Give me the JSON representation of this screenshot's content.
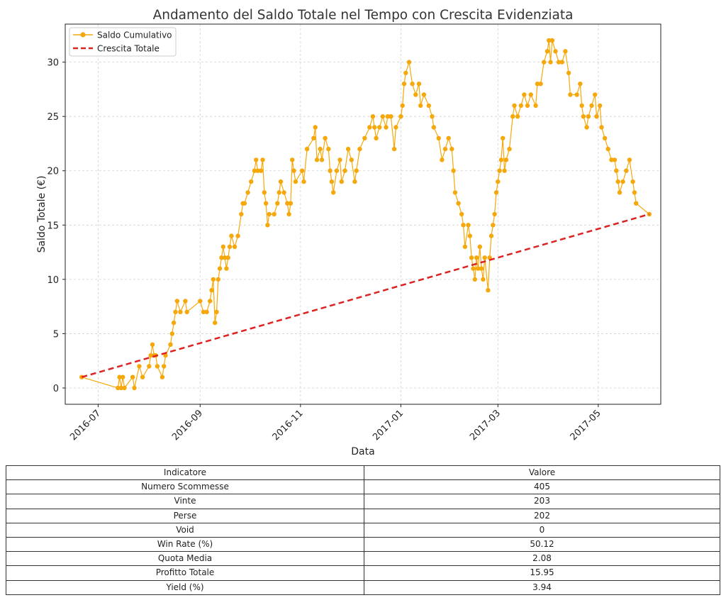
{
  "chart_data": {
    "type": "line",
    "title": "Andamento del Saldo Totale nel Tempo con Crescita Evidenziata",
    "xlabel": "Data",
    "ylabel": "Saldo Totale (€)",
    "xlim": [
      "2016-06-11",
      "2017-06-08"
    ],
    "ylim": [
      -1.5,
      33.5
    ],
    "x_ticks": [
      "2016-07-01",
      "2016-09-01",
      "2016-11-01",
      "2017-01-01",
      "2017-03-01",
      "2017-05-01"
    ],
    "x_tick_labels": [
      "2016-07",
      "2016-09",
      "2016-11",
      "2017-01",
      "2017-03",
      "2017-05"
    ],
    "y_ticks": [
      0,
      5,
      10,
      15,
      20,
      25,
      30
    ],
    "grid": true,
    "legend_position": "top-left",
    "series": [
      {
        "name": "Saldo Cumulativo",
        "color": "#f5a80b",
        "marker": "circle",
        "points": [
          [
            "2016-06-21",
            1
          ],
          [
            "2016-07-13",
            0
          ],
          [
            "2016-07-14",
            1
          ],
          [
            "2016-07-15",
            0
          ],
          [
            "2016-07-16",
            1
          ],
          [
            "2016-07-17",
            0
          ],
          [
            "2016-07-22",
            1
          ],
          [
            "2016-07-23",
            0
          ],
          [
            "2016-07-26",
            2
          ],
          [
            "2016-07-28",
            1
          ],
          [
            "2016-08-01",
            2
          ],
          [
            "2016-08-02",
            3
          ],
          [
            "2016-08-03",
            4
          ],
          [
            "2016-08-04",
            3
          ],
          [
            "2016-08-05",
            3
          ],
          [
            "2016-08-06",
            2
          ],
          [
            "2016-08-09",
            1
          ],
          [
            "2016-08-10",
            2
          ],
          [
            "2016-08-11",
            3
          ],
          [
            "2016-08-14",
            4
          ],
          [
            "2016-08-15",
            5
          ],
          [
            "2016-08-16",
            6
          ],
          [
            "2016-08-17",
            7
          ],
          [
            "2016-08-18",
            8
          ],
          [
            "2016-08-20",
            7
          ],
          [
            "2016-08-23",
            8
          ],
          [
            "2016-08-24",
            7
          ],
          [
            "2016-09-01",
            8
          ],
          [
            "2016-09-03",
            7
          ],
          [
            "2016-09-05",
            7
          ],
          [
            "2016-09-07",
            8
          ],
          [
            "2016-09-08",
            9
          ],
          [
            "2016-09-09",
            10
          ],
          [
            "2016-09-10",
            6
          ],
          [
            "2016-09-11",
            7
          ],
          [
            "2016-09-12",
            10
          ],
          [
            "2016-09-13",
            11
          ],
          [
            "2016-09-14",
            12
          ],
          [
            "2016-09-15",
            13
          ],
          [
            "2016-09-16",
            12
          ],
          [
            "2016-09-17",
            11
          ],
          [
            "2016-09-18",
            12
          ],
          [
            "2016-09-19",
            13
          ],
          [
            "2016-09-20",
            14
          ],
          [
            "2016-09-22",
            13
          ],
          [
            "2016-09-24",
            14
          ],
          [
            "2016-09-26",
            16
          ],
          [
            "2016-09-27",
            17
          ],
          [
            "2016-09-28",
            17
          ],
          [
            "2016-09-30",
            18
          ],
          [
            "2016-10-02",
            19
          ],
          [
            "2016-10-04",
            20
          ],
          [
            "2016-10-05",
            21
          ],
          [
            "2016-10-06",
            20
          ],
          [
            "2016-10-08",
            20
          ],
          [
            "2016-10-09",
            21
          ],
          [
            "2016-10-10",
            18
          ],
          [
            "2016-10-11",
            17
          ],
          [
            "2016-10-12",
            15
          ],
          [
            "2016-10-13",
            16
          ],
          [
            "2016-10-16",
            16
          ],
          [
            "2016-10-18",
            17
          ],
          [
            "2016-10-19",
            18
          ],
          [
            "2016-10-20",
            19
          ],
          [
            "2016-10-22",
            18
          ],
          [
            "2016-10-24",
            17
          ],
          [
            "2016-10-25",
            16
          ],
          [
            "2016-10-26",
            17
          ],
          [
            "2016-10-27",
            21
          ],
          [
            "2016-10-28",
            20
          ],
          [
            "2016-10-29",
            19
          ],
          [
            "2016-11-02",
            20
          ],
          [
            "2016-11-03",
            19
          ],
          [
            "2016-11-05",
            22
          ],
          [
            "2016-11-09",
            23
          ],
          [
            "2016-11-10",
            24
          ],
          [
            "2016-11-11",
            21
          ],
          [
            "2016-11-13",
            22
          ],
          [
            "2016-11-14",
            21
          ],
          [
            "2016-11-16",
            23
          ],
          [
            "2016-11-18",
            22
          ],
          [
            "2016-11-19",
            20
          ],
          [
            "2016-11-20",
            19
          ],
          [
            "2016-11-21",
            18
          ],
          [
            "2016-11-23",
            20
          ],
          [
            "2016-11-25",
            21
          ],
          [
            "2016-11-26",
            19
          ],
          [
            "2016-11-28",
            20
          ],
          [
            "2016-11-30",
            22
          ],
          [
            "2016-12-02",
            21
          ],
          [
            "2016-12-04",
            19
          ],
          [
            "2016-12-05",
            20
          ],
          [
            "2016-12-07",
            22
          ],
          [
            "2016-12-10",
            23
          ],
          [
            "2016-12-13",
            24
          ],
          [
            "2016-12-15",
            25
          ],
          [
            "2016-12-16",
            24
          ],
          [
            "2016-12-17",
            23
          ],
          [
            "2016-12-19",
            24
          ],
          [
            "2016-12-21",
            25
          ],
          [
            "2016-12-23",
            24
          ],
          [
            "2016-12-24",
            25
          ],
          [
            "2016-12-26",
            25
          ],
          [
            "2016-12-28",
            22
          ],
          [
            "2016-12-29",
            24
          ],
          [
            "2017-01-01",
            25
          ],
          [
            "2017-01-02",
            26
          ],
          [
            "2017-01-03",
            28
          ],
          [
            "2017-01-04",
            29
          ],
          [
            "2017-01-06",
            30
          ],
          [
            "2017-01-08",
            28
          ],
          [
            "2017-01-10",
            27
          ],
          [
            "2017-01-12",
            28
          ],
          [
            "2017-01-13",
            26
          ],
          [
            "2017-01-15",
            27
          ],
          [
            "2017-01-18",
            26
          ],
          [
            "2017-01-20",
            25
          ],
          [
            "2017-01-21",
            24
          ],
          [
            "2017-01-24",
            23
          ],
          [
            "2017-01-26",
            21
          ],
          [
            "2017-01-28",
            22
          ],
          [
            "2017-01-30",
            23
          ],
          [
            "2017-02-01",
            22
          ],
          [
            "2017-02-02",
            20
          ],
          [
            "2017-02-03",
            18
          ],
          [
            "2017-02-05",
            17
          ],
          [
            "2017-02-07",
            16
          ],
          [
            "2017-02-08",
            15
          ],
          [
            "2017-02-09",
            13
          ],
          [
            "2017-02-11",
            15
          ],
          [
            "2017-02-12",
            14
          ],
          [
            "2017-02-13",
            12
          ],
          [
            "2017-02-14",
            11
          ],
          [
            "2017-02-15",
            10
          ],
          [
            "2017-02-16",
            12
          ],
          [
            "2017-02-17",
            11
          ],
          [
            "2017-02-18",
            13
          ],
          [
            "2017-02-19",
            11
          ],
          [
            "2017-02-20",
            10
          ],
          [
            "2017-02-21",
            12
          ],
          [
            "2017-02-23",
            9
          ],
          [
            "2017-02-24",
            12
          ],
          [
            "2017-02-25",
            14
          ],
          [
            "2017-02-26",
            15
          ],
          [
            "2017-02-27",
            16
          ],
          [
            "2017-02-28",
            18
          ],
          [
            "2017-03-01",
            19
          ],
          [
            "2017-03-02",
            20
          ],
          [
            "2017-03-03",
            21
          ],
          [
            "2017-03-04",
            23
          ],
          [
            "2017-03-05",
            20
          ],
          [
            "2017-03-06",
            21
          ],
          [
            "2017-03-08",
            22
          ],
          [
            "2017-03-10",
            25
          ],
          [
            "2017-03-11",
            26
          ],
          [
            "2017-03-13",
            25
          ],
          [
            "2017-03-15",
            26
          ],
          [
            "2017-03-17",
            27
          ],
          [
            "2017-03-19",
            26
          ],
          [
            "2017-03-21",
            27
          ],
          [
            "2017-03-24",
            26
          ],
          [
            "2017-03-25",
            28
          ],
          [
            "2017-03-27",
            28
          ],
          [
            "2017-03-29",
            30
          ],
          [
            "2017-03-31",
            31
          ],
          [
            "2017-04-01",
            32
          ],
          [
            "2017-04-02",
            30
          ],
          [
            "2017-04-03",
            32
          ],
          [
            "2017-04-05",
            31
          ],
          [
            "2017-04-07",
            30
          ],
          [
            "2017-04-09",
            30
          ],
          [
            "2017-04-11",
            31
          ],
          [
            "2017-04-13",
            29
          ],
          [
            "2017-04-14",
            27
          ],
          [
            "2017-04-18",
            27
          ],
          [
            "2017-04-20",
            28
          ],
          [
            "2017-04-21",
            26
          ],
          [
            "2017-04-22",
            25
          ],
          [
            "2017-04-24",
            24
          ],
          [
            "2017-04-25",
            25
          ],
          [
            "2017-04-27",
            26
          ],
          [
            "2017-04-29",
            27
          ],
          [
            "2017-04-30",
            25
          ],
          [
            "2017-05-02",
            26
          ],
          [
            "2017-05-03",
            24
          ],
          [
            "2017-05-05",
            23
          ],
          [
            "2017-05-07",
            22
          ],
          [
            "2017-05-09",
            21
          ],
          [
            "2017-05-11",
            21
          ],
          [
            "2017-05-12",
            20
          ],
          [
            "2017-05-13",
            19
          ],
          [
            "2017-05-14",
            18
          ],
          [
            "2017-05-16",
            19
          ],
          [
            "2017-05-18",
            20
          ],
          [
            "2017-05-20",
            21
          ],
          [
            "2017-05-22",
            19
          ],
          [
            "2017-05-23",
            18
          ],
          [
            "2017-05-24",
            17
          ],
          [
            "2017-06-01",
            16
          ]
        ]
      },
      {
        "name": "Crescita Totale",
        "color": "#dd2222",
        "style": "dashed",
        "points": [
          [
            "2016-06-21",
            1
          ],
          [
            "2017-06-01",
            16
          ]
        ]
      }
    ]
  },
  "table": {
    "headers": [
      "Indicatore",
      "Valore"
    ],
    "rows": [
      [
        "Numero Scommesse",
        "405"
      ],
      [
        "Vinte",
        "203"
      ],
      [
        "Perse",
        "202"
      ],
      [
        "Void",
        "0"
      ],
      [
        "Win Rate (%)",
        "50.12"
      ],
      [
        "Quota Media",
        "2.08"
      ],
      [
        "Profitto Totale",
        "15.95"
      ],
      [
        "Yield (%)",
        "3.94"
      ]
    ]
  }
}
